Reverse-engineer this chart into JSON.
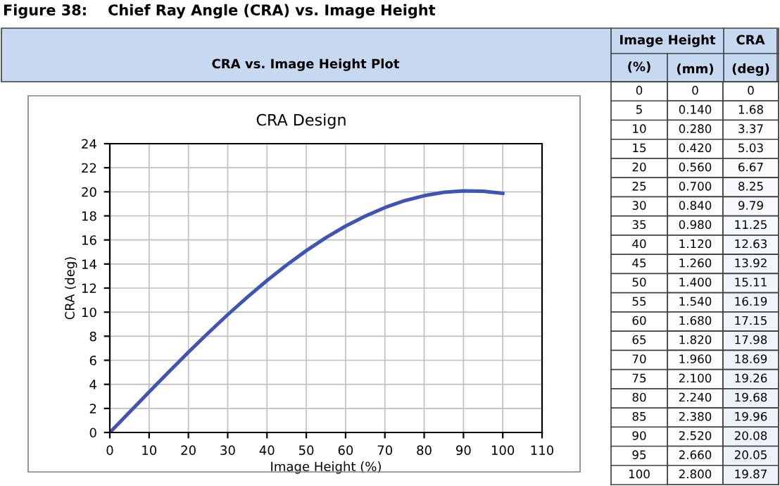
{
  "chart_data": [
    {
      "type": "line",
      "title": "Figure 38:    Chief Ray Angle (CRA) vs. Image Height",
      "subtitle": "CRA vs. Image Height Plot",
      "annotations": [
        "CRA Design"
      ],
      "xlabel": "Image Height (%)",
      "ylabel": "CRA (deg)",
      "x": [
        0,
        5,
        10,
        15,
        20,
        25,
        30,
        35,
        40,
        45,
        50,
        55,
        60,
        65,
        70,
        75,
        80,
        85,
        90,
        95,
        100
      ],
      "series": [
        {
          "color": "#3f55b5",
          "values": [
            0,
            1.68,
            3.37,
            5.03,
            6.67,
            8.25,
            9.79,
            11.25,
            12.63,
            13.92,
            15.11,
            16.19,
            17.15,
            17.98,
            18.69,
            19.26,
            19.68,
            19.96,
            20.08,
            20.05,
            19.87
          ]
        }
      ],
      "xlim": [
        0,
        110
      ],
      "xticks": [
        0,
        10,
        20,
        30,
        40,
        50,
        60,
        70,
        80,
        90,
        100,
        110
      ],
      "ylim": [
        0,
        24
      ],
      "yticks": [
        0,
        2,
        4,
        6,
        8,
        10,
        12,
        14,
        16,
        18,
        20,
        22,
        24
      ],
      "grid": true,
      "marker": "none",
      "line_style": "solid"
    },
    {
      "type": "heatmap",
      "annotations": [
        "Image Height",
        "(%)",
        "CRA"
      ],
      "categories": [
        "(mm)",
        "(deg)"
      ],
      "y_categories": [
        "0",
        "5",
        "10",
        "15",
        "20",
        "25",
        "30",
        "35",
        "40",
        "45",
        "50",
        "55",
        "60",
        "65",
        "70",
        "75",
        "80",
        "85",
        "90",
        "95",
        "100"
      ],
      "cells": [
        [
          0,
          0
        ],
        [
          0.14,
          1.68
        ],
        [
          0.28,
          3.37
        ],
        [
          0.42,
          5.03
        ],
        [
          0.56,
          6.67
        ],
        [
          0.7,
          8.25
        ],
        [
          0.84,
          9.79
        ],
        [
          0.98,
          11.25
        ],
        [
          1.12,
          12.63
        ],
        [
          1.26,
          13.92
        ],
        [
          1.4,
          15.11
        ],
        [
          1.54,
          16.19
        ],
        [
          1.68,
          17.15
        ],
        [
          1.82,
          17.98
        ],
        [
          1.96,
          18.69
        ],
        [
          2.1,
          19.26
        ],
        [
          2.24,
          19.68
        ],
        [
          2.38,
          19.96
        ],
        [
          2.52,
          20.08
        ],
        [
          2.66,
          20.05
        ],
        [
          2.8,
          19.87
        ]
      ],
      "cell_labels": [
        [
          "0",
          "0"
        ],
        [
          "0.140",
          "1.68"
        ],
        [
          "0.280",
          "3.37"
        ],
        [
          "0.420",
          "5.03"
        ],
        [
          "0.560",
          "6.67"
        ],
        [
          "0.700",
          "8.25"
        ],
        [
          "0.840",
          "9.79"
        ],
        [
          "0.980",
          "11.25"
        ],
        [
          "1.120",
          "12.63"
        ],
        [
          "1.260",
          "13.92"
        ],
        [
          "1.400",
          "15.11"
        ],
        [
          "1.540",
          "16.19"
        ],
        [
          "1.680",
          "17.15"
        ],
        [
          "1.820",
          "17.98"
        ],
        [
          "1.960",
          "18.69"
        ],
        [
          "2.100",
          "19.26"
        ],
        [
          "2.240",
          "19.68"
        ],
        [
          "2.380",
          "19.96"
        ],
        [
          "2.520",
          "20.08"
        ],
        [
          "2.660",
          "20.05"
        ],
        [
          "2.800",
          "19.87"
        ]
      ]
    }
  ]
}
